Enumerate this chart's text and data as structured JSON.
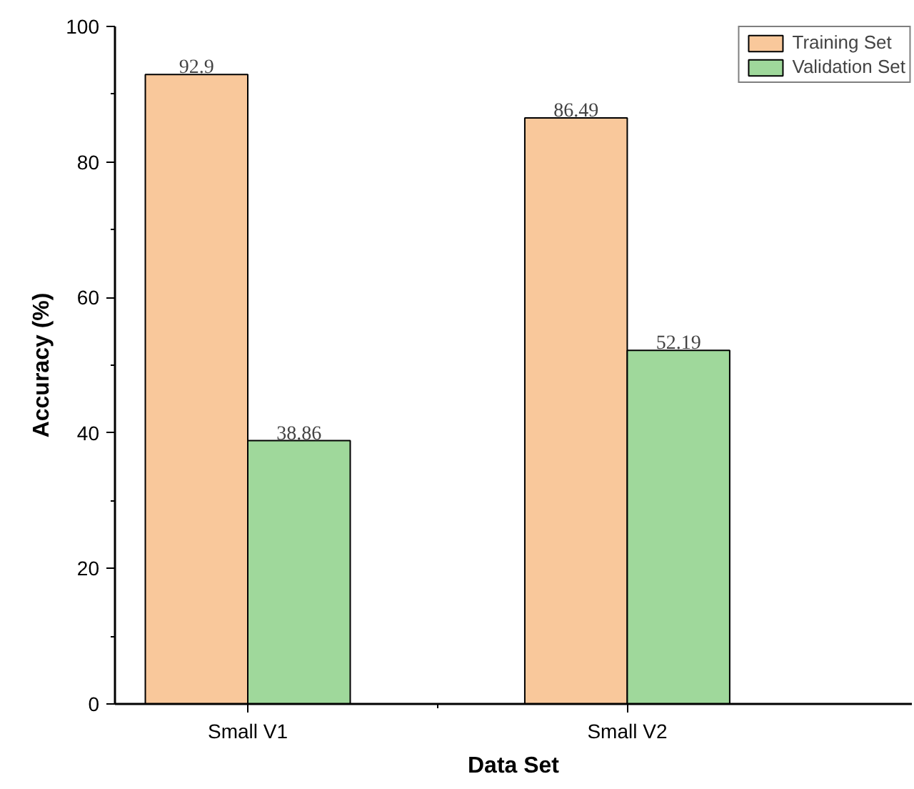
{
  "chart_data": {
    "type": "bar",
    "xlabel": "Data Set",
    "ylabel": "Accuracy (%)",
    "categories": [
      "Small V1",
      "Small V2"
    ],
    "series": [
      {
        "name": "Training Set",
        "color": "#f9c89b",
        "values": [
          92.9,
          86.49
        ]
      },
      {
        "name": "Validation Set",
        "color": "#9fd89b",
        "values": [
          38.86,
          52.19
        ]
      }
    ],
    "ylim": [
      0,
      100
    ],
    "yticks": [
      0,
      20,
      40,
      60,
      80,
      100
    ],
    "data_labels": true,
    "legend": "top right",
    "grid": false
  }
}
